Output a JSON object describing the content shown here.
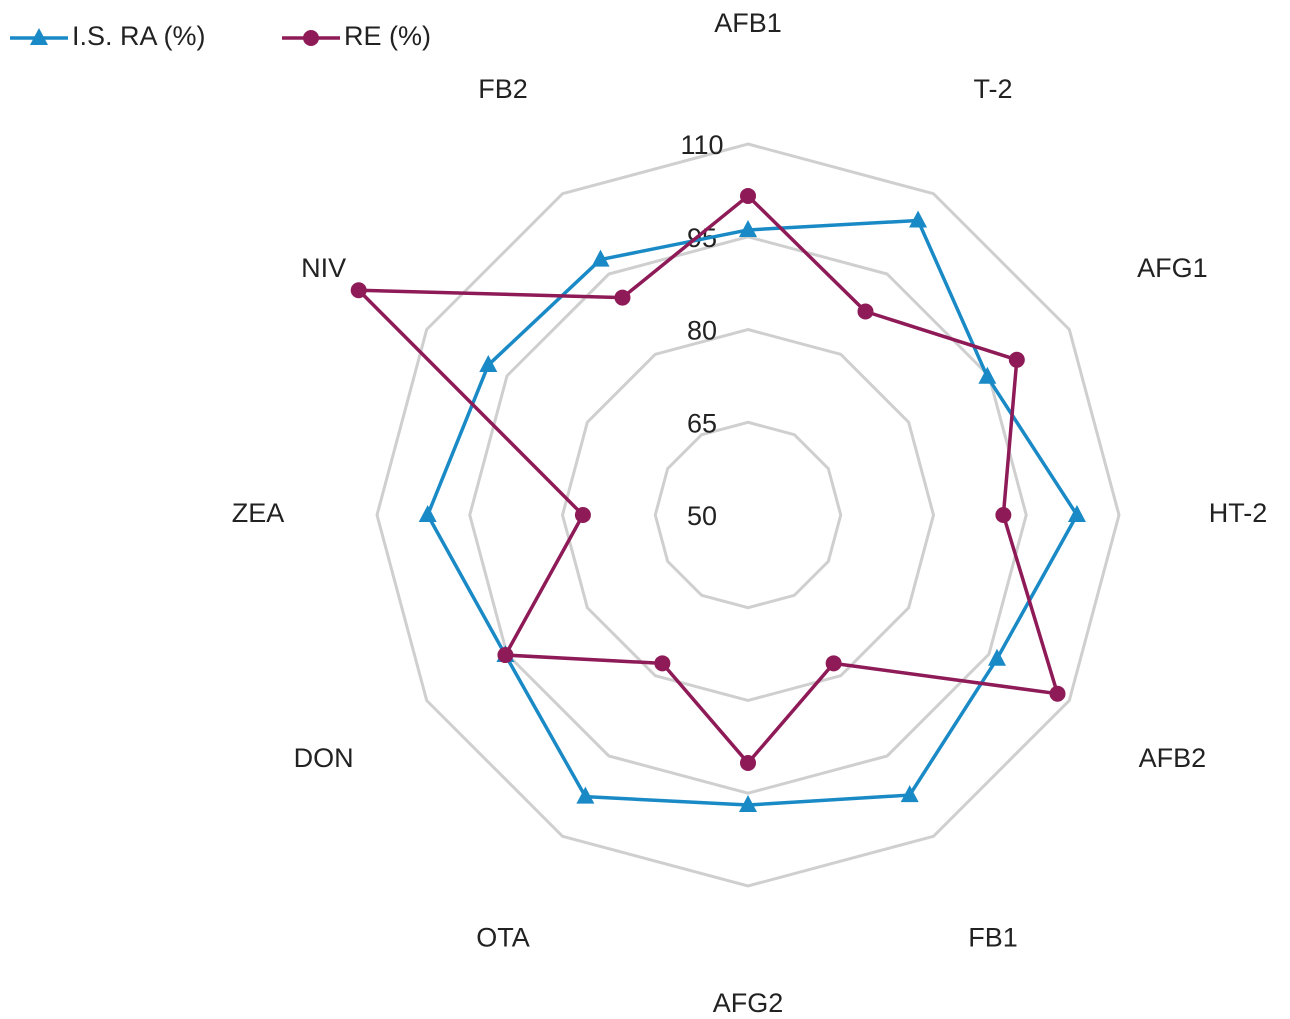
{
  "chart_data": {
    "type": "radar",
    "categories": [
      "AFB1",
      "T-2",
      "AFG1",
      "HT-2",
      "AFB2",
      "FB1",
      "AFG2",
      "OTA",
      "DON",
      "ZEA",
      "NIV",
      "FB2"
    ],
    "series": [
      {
        "name": "I.S. RA (%)",
        "color": "#1a8ac6",
        "marker": "triangle",
        "values": [
          96.1,
          105,
          94.7,
          103.2,
          96.5,
          102.3,
          96.9,
          102.6,
          95.3,
          101.8,
          98.5,
          97.7
        ]
      },
      {
        "name": "RE (%)",
        "color": "#8e1b57",
        "marker": "circle",
        "values": [
          101.6,
          88,
          100.2,
          91.3,
          107.8,
          77.7,
          90.1,
          77.7,
          95.3,
          76.7,
          122.7,
          90.6
        ]
      }
    ],
    "rlim": [
      50,
      110
    ],
    "rticks": [
      50,
      65,
      80,
      95,
      110
    ],
    "grid": true,
    "legend": "top-left"
  }
}
